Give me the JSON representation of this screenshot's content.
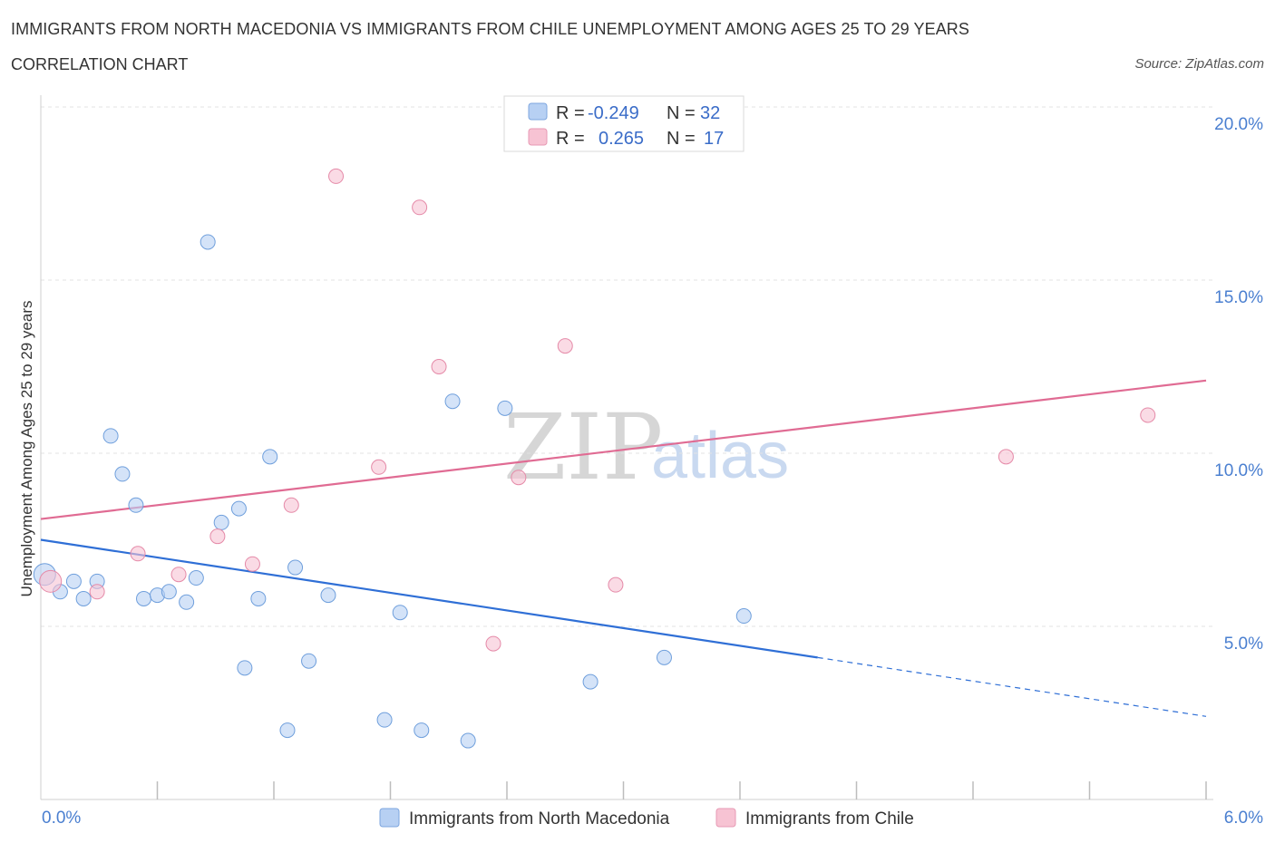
{
  "header": {
    "title": "IMMIGRANTS FROM NORTH MACEDONIA VS IMMIGRANTS FROM CHILE UNEMPLOYMENT AMONG AGES 25 TO 29 YEARS",
    "subtitle": "CORRELATION CHART",
    "source": "Source: ZipAtlas.com"
  },
  "watermark": {
    "part1": "ZIP",
    "part2": "atlas"
  },
  "legend_box": {
    "rows": [
      {
        "r_label": "R =",
        "r_value": "-0.249",
        "n_label": "N =",
        "n_value": "32",
        "color": "#b7d0f3"
      },
      {
        "r_label": "R =",
        "r_value": "0.265",
        "n_label": "N =",
        "n_value": "17",
        "color": "#f7c3d3"
      }
    ]
  },
  "bottom_legend": [
    {
      "label": "Immigrants from North Macedonia",
      "color": "#b7d0f3"
    },
    {
      "label": "Immigrants from Chile",
      "color": "#f7c3d3"
    }
  ],
  "chart_data": {
    "type": "scatter",
    "title": "IMMIGRANTS FROM NORTH MACEDONIA VS IMMIGRANTS FROM CHILE UNEMPLOYMENT AMONG AGES 25 TO 29 YEARS",
    "xlabel": "",
    "ylabel": "Unemployment Among Ages 25 to 29 years",
    "xlim": [
      0,
      6
    ],
    "ylim": [
      0,
      20
    ],
    "x_tick_labels": [
      "0.0%",
      "6.0%"
    ],
    "y_ticks": [
      5,
      10,
      15,
      20
    ],
    "y_tick_labels": [
      "5.0%",
      "10.0%",
      "15.0%",
      "20.0%"
    ],
    "grid": true,
    "series": [
      {
        "name": "Immigrants from North Macedonia",
        "color": "#b7d0f3",
        "stroke": "#6f9fdc",
        "trend_color": "#2f6fd6",
        "points": [
          [
            0.02,
            6.5
          ],
          [
            0.1,
            6.0
          ],
          [
            0.17,
            6.3
          ],
          [
            0.22,
            5.8
          ],
          [
            0.29,
            6.3
          ],
          [
            0.36,
            10.5
          ],
          [
            0.42,
            9.4
          ],
          [
            0.49,
            8.5
          ],
          [
            0.53,
            5.8
          ],
          [
            0.6,
            5.9
          ],
          [
            0.66,
            6.0
          ],
          [
            0.75,
            5.7
          ],
          [
            0.8,
            6.4
          ],
          [
            0.86,
            16.1
          ],
          [
            0.93,
            8.0
          ],
          [
            1.02,
            8.4
          ],
          [
            1.05,
            3.8
          ],
          [
            1.12,
            5.8
          ],
          [
            1.18,
            9.9
          ],
          [
            1.27,
            2.0
          ],
          [
            1.31,
            6.7
          ],
          [
            1.38,
            4.0
          ],
          [
            1.48,
            5.9
          ],
          [
            1.77,
            2.3
          ],
          [
            1.85,
            5.4
          ],
          [
            1.96,
            2.0
          ],
          [
            2.12,
            11.5
          ],
          [
            2.2,
            1.7
          ],
          [
            2.39,
            11.3
          ],
          [
            2.83,
            3.4
          ],
          [
            3.21,
            4.1
          ],
          [
            3.62,
            5.3
          ]
        ],
        "trend": {
          "x0": 0,
          "y0": 7.5,
          "x1": 4.0,
          "y1": 4.1,
          "dashed_to_x": 6.0,
          "dashed_to_y": 2.4
        }
      },
      {
        "name": "Immigrants from Chile",
        "color": "#f7c3d3",
        "stroke": "#e58aa8",
        "trend_color": "#e06b93",
        "points": [
          [
            0.05,
            6.3
          ],
          [
            0.29,
            6.0
          ],
          [
            0.5,
            7.1
          ],
          [
            0.71,
            6.5
          ],
          [
            0.91,
            7.6
          ],
          [
            1.09,
            6.8
          ],
          [
            1.29,
            8.5
          ],
          [
            1.52,
            18.0
          ],
          [
            1.74,
            9.6
          ],
          [
            1.95,
            17.1
          ],
          [
            2.05,
            12.5
          ],
          [
            2.33,
            4.5
          ],
          [
            2.46,
            9.3
          ],
          [
            2.7,
            13.1
          ],
          [
            2.96,
            6.2
          ],
          [
            4.97,
            9.9
          ],
          [
            5.7,
            11.1
          ]
        ],
        "trend": {
          "x0": 0,
          "y0": 8.1,
          "x1": 6.0,
          "y1": 12.1
        }
      }
    ]
  }
}
